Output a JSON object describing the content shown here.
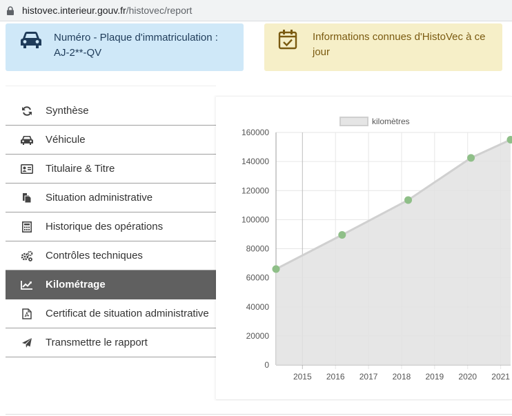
{
  "browser": {
    "url_host": "histovec.interieur.gouv.fr",
    "url_path": "/histovec/report"
  },
  "cards": {
    "plate": {
      "label": "Numéro - Plaque d'immatriculation :",
      "value": "AJ-2**-QV",
      "icon": "car-icon",
      "color": "#cfe8f8"
    },
    "info": {
      "text": "Informations connues d'HistoVec à ce jour",
      "icon": "calendar-check-icon",
      "color": "#f6efc8"
    }
  },
  "menu": {
    "items": [
      {
        "label": "Synthèse",
        "icon": "refresh-icon"
      },
      {
        "label": "Véhicule",
        "icon": "car-icon"
      },
      {
        "label": "Titulaire & Titre",
        "icon": "id-card-icon"
      },
      {
        "label": "Situation administrative",
        "icon": "copy-icon"
      },
      {
        "label": "Historique des opérations",
        "icon": "calculator-icon"
      },
      {
        "label": "Contrôles techniques",
        "icon": "cogs-icon"
      },
      {
        "label": "Kilométrage",
        "icon": "line-chart-icon",
        "active": true
      },
      {
        "label": "Certificat de situation administrative",
        "icon": "pdf-file-icon"
      },
      {
        "label": "Transmettre le rapport",
        "icon": "paper-plane-icon"
      }
    ],
    "active_color": "#606060"
  },
  "chart_data": {
    "type": "area",
    "title": "",
    "xlabel": "",
    "ylabel": "",
    "series": [
      {
        "name": "kilomètres",
        "points": [
          {
            "x": 2014.2,
            "y": 66000
          },
          {
            "x": 2016.2,
            "y": 89500
          },
          {
            "x": 2018.2,
            "y": 113500
          },
          {
            "x": 2020.1,
            "y": 142500
          },
          {
            "x": 2021.3,
            "y": 155000
          }
        ]
      }
    ],
    "x_ticks": [
      "2015",
      "2016",
      "2017",
      "2018",
      "2019",
      "2020",
      "2021"
    ],
    "y_ticks": [
      "0",
      "20000",
      "40000",
      "60000",
      "80000",
      "100000",
      "120000",
      "140000",
      "160000"
    ],
    "ylim": [
      0,
      160000
    ],
    "grid": true,
    "legend_position": "top",
    "fill_color": "#e2e2e2",
    "line_color": "#d0d0d0",
    "point_color": "#8fbf88"
  }
}
